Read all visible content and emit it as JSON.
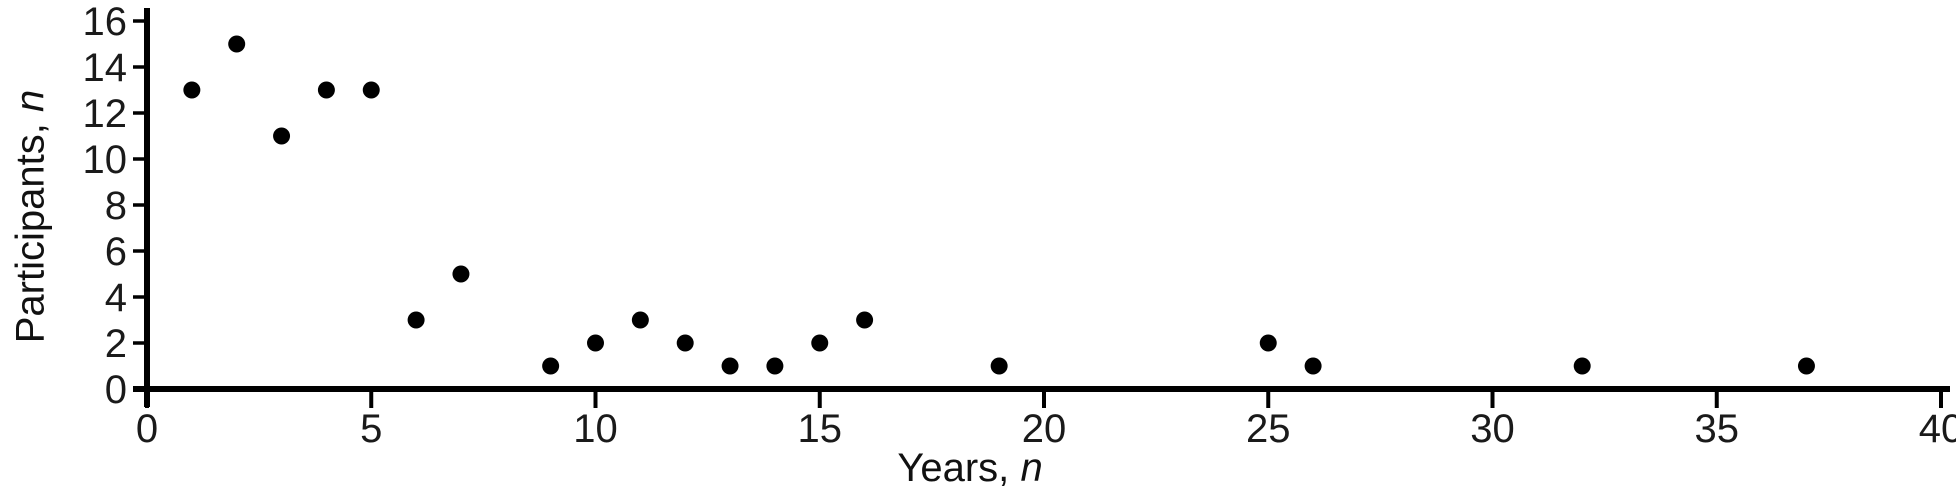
{
  "page": {
    "background_color": "#ffffff",
    "text_color": "#111111"
  },
  "chart_data": {
    "type": "scatter",
    "title": "",
    "xlabel": {
      "text": "Years,",
      "symbol": "n"
    },
    "ylabel": {
      "text": "Participants,",
      "symbol": "n"
    },
    "xlim": [
      0,
      40
    ],
    "ylim": [
      0,
      16
    ],
    "x_ticks": [
      0,
      5,
      10,
      15,
      20,
      25,
      30,
      35,
      40
    ],
    "y_ticks": [
      0,
      2,
      4,
      6,
      8,
      10,
      12,
      14,
      16
    ],
    "grid": false,
    "axis_color": "#000000",
    "tick_label_color": "#1a1a1a",
    "marker": {
      "shape": "circle",
      "color": "#000000"
    },
    "points": [
      {
        "x": 1,
        "y": 13
      },
      {
        "x": 2,
        "y": 15
      },
      {
        "x": 3,
        "y": 11
      },
      {
        "x": 4,
        "y": 13
      },
      {
        "x": 5,
        "y": 13
      },
      {
        "x": 6,
        "y": 3
      },
      {
        "x": 7,
        "y": 5
      },
      {
        "x": 9,
        "y": 1
      },
      {
        "x": 10,
        "y": 2
      },
      {
        "x": 11,
        "y": 3
      },
      {
        "x": 12,
        "y": 2
      },
      {
        "x": 13,
        "y": 1
      },
      {
        "x": 14,
        "y": 1
      },
      {
        "x": 15,
        "y": 2
      },
      {
        "x": 16,
        "y": 3
      },
      {
        "x": 19,
        "y": 1
      },
      {
        "x": 25,
        "y": 2
      },
      {
        "x": 26,
        "y": 1
      },
      {
        "x": 32,
        "y": 1
      },
      {
        "x": 37,
        "y": 1
      }
    ]
  }
}
